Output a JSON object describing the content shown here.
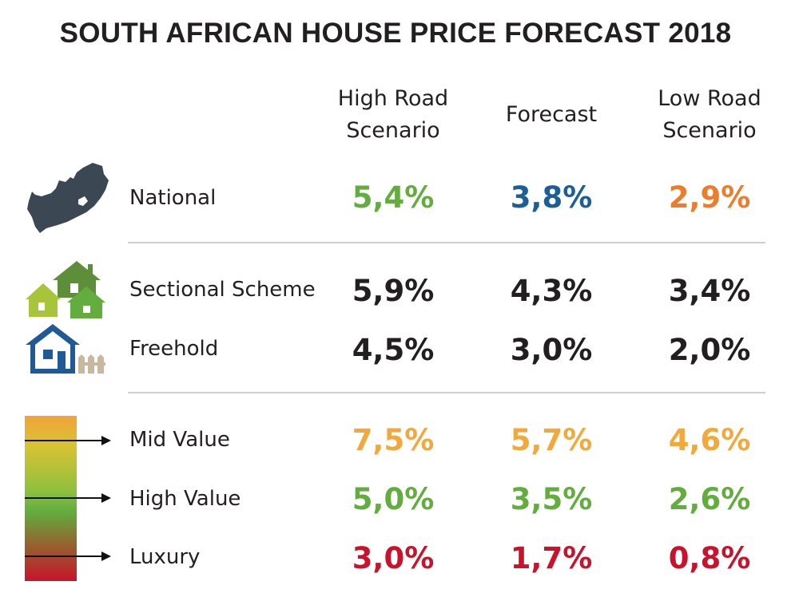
{
  "title": "SOUTH AFRICAN HOUSE PRICE FORECAST 2018",
  "columns": [
    {
      "line1": "High Road",
      "line2": "Scenario"
    },
    {
      "line1": "Forecast",
      "line2": ""
    },
    {
      "line1": "Low Road",
      "line2": "Scenario"
    }
  ],
  "rows": [
    {
      "label": "National",
      "values": [
        "5,4%",
        "3,8%",
        "2,9%"
      ],
      "colors": [
        "#62ad3e",
        "#1d5f95",
        "#ec7d2d"
      ]
    },
    {
      "label": "Sectional Scheme",
      "values": [
        "5,9%",
        "4,3%",
        "3,4%"
      ],
      "colors": [
        "#231f20",
        "#231f20",
        "#231f20"
      ]
    },
    {
      "label": "Freehold",
      "values": [
        "4,5%",
        "3,0%",
        "2,0%"
      ],
      "colors": [
        "#231f20",
        "#231f20",
        "#231f20"
      ]
    },
    {
      "label": "Mid Value",
      "values": [
        "7,5%",
        "5,7%",
        "4,6%"
      ],
      "colors": [
        "#f2a93b",
        "#f2a93b",
        "#f2a93b"
      ]
    },
    {
      "label": "High Value",
      "values": [
        "5,0%",
        "3,5%",
        "2,6%"
      ],
      "colors": [
        "#62ad3e",
        "#62ad3e",
        "#62ad3e"
      ]
    },
    {
      "label": "Luxury",
      "values": [
        "3,0%",
        "1,7%",
        "0,8%"
      ],
      "colors": [
        "#c7132c",
        "#c7132c",
        "#c7132c"
      ]
    }
  ],
  "chart_data": {
    "type": "table",
    "title": "SOUTH AFRICAN HOUSE PRICE FORECAST 2018",
    "columns": [
      "High Road Scenario",
      "Forecast",
      "Low Road Scenario"
    ],
    "categories": [
      "National",
      "Sectional Scheme",
      "Freehold",
      "Mid Value",
      "High Value",
      "Luxury"
    ],
    "series": [
      {
        "name": "High Road Scenario",
        "values": [
          5.4,
          5.9,
          4.5,
          7.5,
          5.0,
          3.0
        ]
      },
      {
        "name": "Forecast",
        "values": [
          3.8,
          4.3,
          3.0,
          5.7,
          3.5,
          1.7
        ]
      },
      {
        "name": "Low Road Scenario",
        "values": [
          2.9,
          3.4,
          2.0,
          4.6,
          2.6,
          0.8
        ]
      }
    ]
  },
  "icons": {
    "map": "south-africa-map-icon",
    "sectional": "houses-cluster-icon",
    "freehold": "house-with-fence-icon",
    "scale": "value-gradient-scale-icon"
  }
}
